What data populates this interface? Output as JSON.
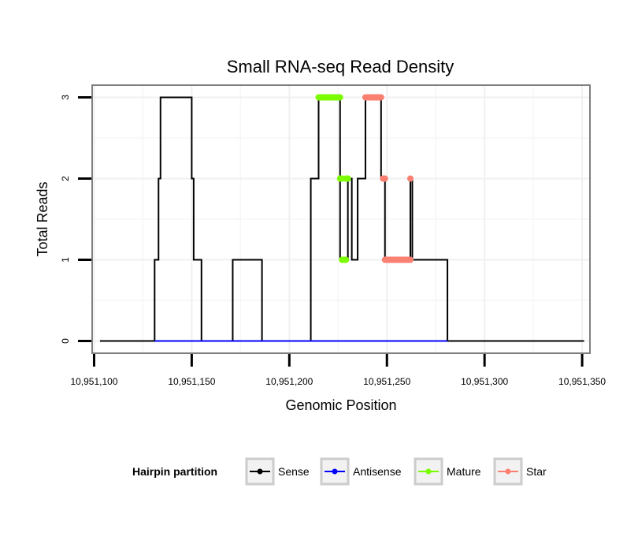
{
  "chart_data": {
    "type": "line",
    "title": "Small RNA-seq Read Density",
    "xlabel": "Genomic Position",
    "ylabel": "Total Reads",
    "xlim": [
      10951099,
      10951354
    ],
    "ylim": [
      -0.15,
      3.15
    ],
    "x_ticks": [
      10951100,
      10951150,
      10951200,
      10951250,
      10951300,
      10951350
    ],
    "x_tick_labels": [
      "10,951,100",
      "10,951,150",
      "10,951,200",
      "10,951,250",
      "10,951,300",
      "10,951,350"
    ],
    "y_ticks": [
      0,
      1,
      2,
      3
    ],
    "y_tick_labels": [
      "0",
      "1",
      "2",
      "3"
    ],
    "grid": true,
    "legend": {
      "title": "Hairpin partition",
      "position": "bottom",
      "entries": [
        {
          "name": "Sense",
          "color": "#000000"
        },
        {
          "name": "Antisense",
          "color": "#0000ff"
        },
        {
          "name": "Mature",
          "color": "#7cfc00"
        },
        {
          "name": "Star",
          "color": "#fa8072"
        }
      ]
    },
    "series": [
      {
        "name": "Sense",
        "color": "#000000",
        "style": "step",
        "points": [
          [
            10951103,
            0
          ],
          [
            10951131,
            0
          ],
          [
            10951131,
            1
          ],
          [
            10951133,
            1
          ],
          [
            10951133,
            2
          ],
          [
            10951134,
            2
          ],
          [
            10951134,
            3
          ],
          [
            10951135,
            3
          ],
          [
            10951150,
            3
          ],
          [
            10951150,
            2
          ],
          [
            10951151,
            2
          ],
          [
            10951151,
            1
          ],
          [
            10951155,
            1
          ],
          [
            10951155,
            0
          ],
          [
            10951171,
            0
          ],
          [
            10951171,
            1
          ],
          [
            10951186,
            1
          ],
          [
            10951186,
            0
          ],
          [
            10951211,
            0
          ],
          [
            10951211,
            2
          ],
          [
            10951215,
            2
          ],
          [
            10951215,
            3
          ],
          [
            10951226,
            3
          ],
          [
            10951226,
            1
          ],
          [
            10951230,
            1
          ],
          [
            10951230,
            2
          ],
          [
            10951232,
            2
          ],
          [
            10951232,
            1
          ],
          [
            10951235,
            1
          ],
          [
            10951235,
            2
          ],
          [
            10951239,
            2
          ],
          [
            10951239,
            3
          ],
          [
            10951247,
            3
          ],
          [
            10951247,
            2
          ],
          [
            10951249,
            2
          ],
          [
            10951249,
            1
          ],
          [
            10951262,
            1
          ],
          [
            10951262,
            2
          ],
          [
            10951263,
            2
          ],
          [
            10951263,
            1
          ],
          [
            10951281,
            1
          ],
          [
            10951281,
            0
          ],
          [
            10951351,
            0
          ]
        ]
      },
      {
        "name": "Antisense",
        "color": "#0000ff",
        "style": "line",
        "points": [
          [
            10951131,
            0
          ],
          [
            10951281,
            0
          ]
        ]
      },
      {
        "name": "Mature",
        "color": "#7cfc00",
        "style": "points",
        "segments": [
          {
            "x_start": 10951215,
            "x_end": 10951226,
            "y": 3
          },
          {
            "x_start": 10951226,
            "x_end": 10951227,
            "y": 2
          },
          {
            "x_start": 10951227,
            "x_end": 10951229,
            "y": 1
          },
          {
            "x_start": 10951229,
            "x_end": 10951230,
            "y": 2
          }
        ]
      },
      {
        "name": "Star",
        "color": "#fa8072",
        "style": "points",
        "segments": [
          {
            "x_start": 10951239,
            "x_end": 10951247,
            "y": 3
          },
          {
            "x_start": 10951248,
            "x_end": 10951249,
            "y": 2
          },
          {
            "x_start": 10951249,
            "x_end": 10951262,
            "y": 1
          },
          {
            "x_start": 10951262,
            "x_end": 10951262,
            "y": 2
          }
        ]
      }
    ]
  }
}
